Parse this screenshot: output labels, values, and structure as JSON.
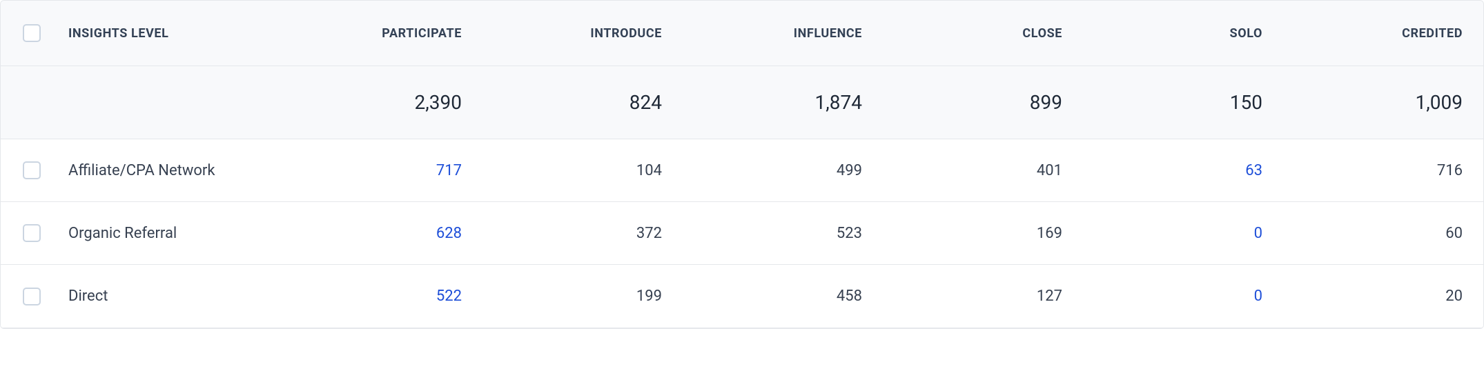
{
  "table": {
    "columns": {
      "insights_level": "INSIGHTS LEVEL",
      "participate": "PARTICIPATE",
      "introduce": "INTRODUCE",
      "influence": "INFLUENCE",
      "close": "CLOSE",
      "solo": "SOLO",
      "credited": "CREDITED"
    },
    "totals": {
      "participate": "2,390",
      "introduce": "824",
      "influence": "1,874",
      "close": "899",
      "solo": "150",
      "credited": "1,009"
    },
    "rows": [
      {
        "label": "Affiliate/CPA Network",
        "participate": "717",
        "introduce": "104",
        "influence": "499",
        "close": "401",
        "solo": "63",
        "credited": "716"
      },
      {
        "label": "Organic Referral",
        "participate": "628",
        "introduce": "372",
        "influence": "523",
        "close": "169",
        "solo": "0",
        "credited": "60"
      },
      {
        "label": "Direct",
        "participate": "522",
        "introduce": "199",
        "influence": "458",
        "close": "127",
        "solo": "0",
        "credited": "20"
      }
    ],
    "link_color": "#1d4ed8",
    "text_color": "#374151",
    "header_bg": "#f8f9fb",
    "border_color": "#e5e7eb"
  }
}
